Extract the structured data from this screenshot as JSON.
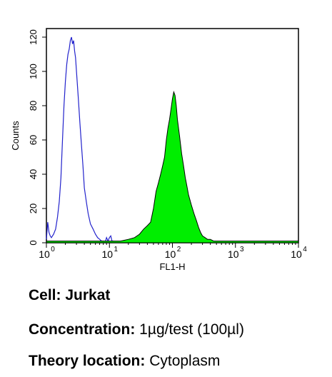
{
  "chart_data": {
    "type": "area",
    "title": "",
    "xlabel": "FL1-H",
    "ylabel": "Counts",
    "xscale": "log",
    "xlim": [
      1,
      10000
    ],
    "ylim": [
      0,
      125
    ],
    "x_ticks": [
      {
        "base": "10",
        "exp": "0"
      },
      {
        "base": "10",
        "exp": "1"
      },
      {
        "base": "10",
        "exp": "2"
      },
      {
        "base": "10",
        "exp": "3"
      },
      {
        "base": "10",
        "exp": "4"
      }
    ],
    "y_ticks": [
      "0",
      "20",
      "40",
      "60",
      "80",
      "100",
      "120"
    ],
    "y_tick_values": [
      0,
      20,
      40,
      60,
      80,
      100,
      120
    ],
    "grid": false,
    "legend": "none",
    "series": [
      {
        "style": "outline",
        "color": "#2222cc",
        "x": [
          1.0,
          1.05,
          1.1,
          1.15,
          1.2,
          1.3,
          1.4,
          1.5,
          1.6,
          1.7,
          1.8,
          1.9,
          2.0,
          2.1,
          2.2,
          2.3,
          2.4,
          2.5,
          2.6,
          2.7,
          2.8,
          2.9,
          3.0,
          3.2,
          3.4,
          3.6,
          3.8,
          4.0,
          4.3,
          4.6,
          5.0,
          5.5,
          6.0,
          6.5,
          7.0,
          7.5,
          8.0,
          8.5,
          9.0,
          9.5,
          10.0,
          10.5,
          11.0,
          11.5,
          12.0
        ],
        "y": [
          2,
          12,
          6,
          4,
          3,
          5,
          8,
          15,
          24,
          38,
          60,
          80,
          94,
          104,
          110,
          113,
          118,
          120,
          116,
          118,
          112,
          108,
          100,
          85,
          70,
          57,
          45,
          32,
          24,
          17,
          11,
          8,
          5,
          3,
          2,
          1,
          1,
          0,
          3,
          1,
          3,
          4,
          1,
          1,
          0
        ]
      },
      {
        "style": "filled",
        "color": "#00ee00",
        "x": [
          1.0,
          2.0,
          5.0,
          10.0,
          15.0,
          20.0,
          25.0,
          30.0,
          35.0,
          40.0,
          45.0,
          50.0,
          55.0,
          60.0,
          65.0,
          70.0,
          75.0,
          80.0,
          85.0,
          90.0,
          95.0,
          100.0,
          105.0,
          110.0,
          115.0,
          120.0,
          130.0,
          140.0,
          150.0,
          160.0,
          170.0,
          180.0,
          200.0,
          220.0,
          240.0,
          260.0,
          280.0,
          300.0,
          330.0,
          360.0,
          400.0,
          450.0,
          500.0,
          600.0,
          800.0,
          1000.0,
          2000.0,
          5000.0,
          10000.0
        ],
        "y": [
          1,
          1,
          1,
          1,
          1,
          2,
          3,
          5,
          8,
          10,
          12,
          20,
          30,
          35,
          40,
          45,
          50,
          60,
          67,
          72,
          78,
          84,
          88,
          86,
          80,
          72,
          62,
          52,
          45,
          38,
          33,
          28,
          22,
          17,
          13,
          9,
          6,
          4,
          3,
          2,
          2,
          1,
          1,
          1,
          1,
          1,
          1,
          1,
          1
        ]
      }
    ]
  },
  "info": [
    {
      "label": "Cell:",
      "value": "Jurkat"
    },
    {
      "label": "Concentration:",
      "value": "1µg/test (100µl)"
    },
    {
      "label": "Theory location:",
      "value": "Cytoplasm"
    }
  ]
}
